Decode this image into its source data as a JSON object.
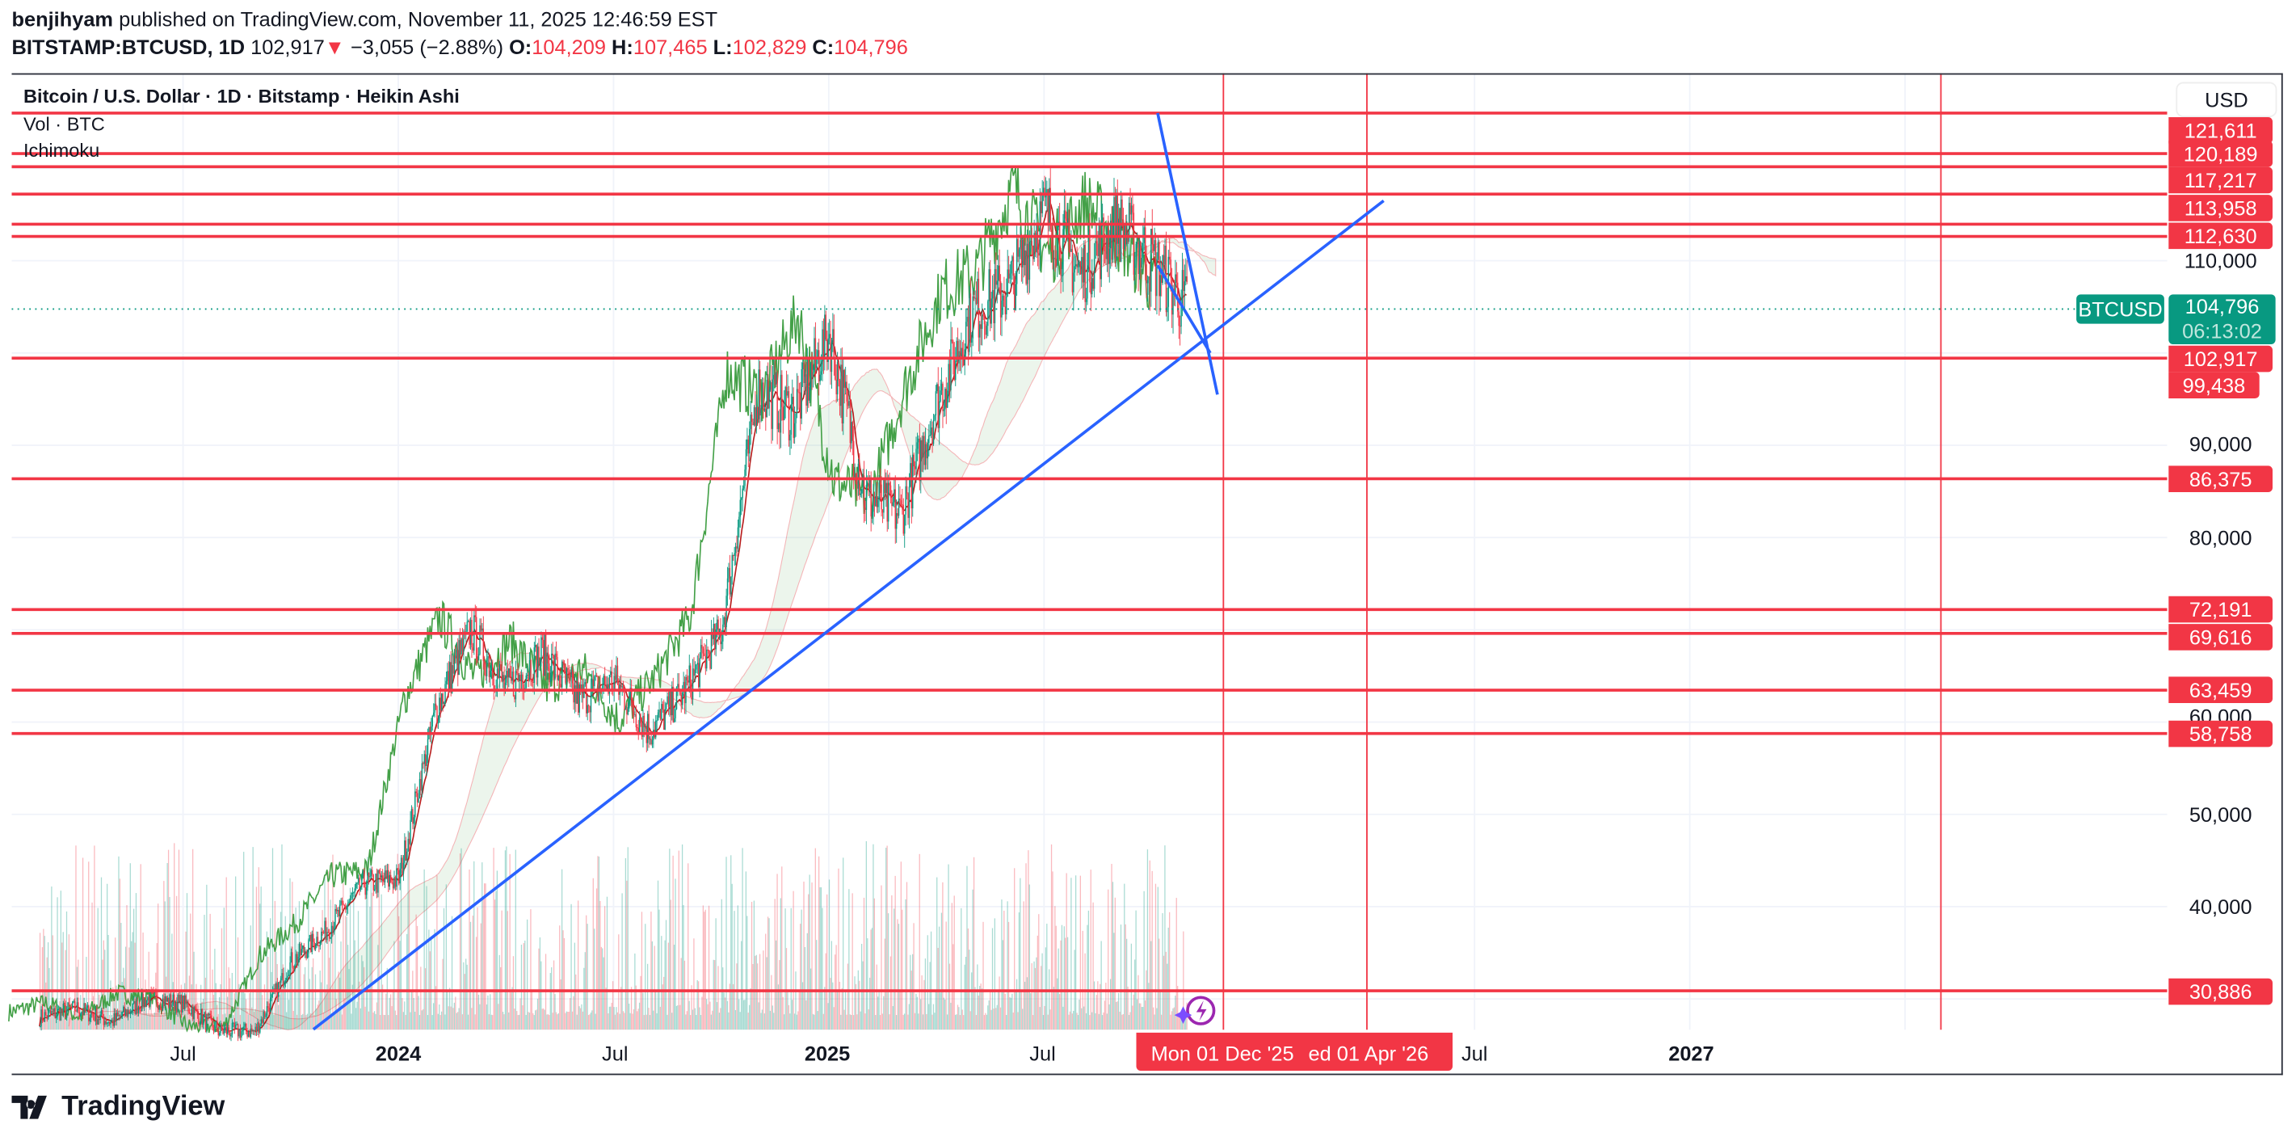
{
  "header": {
    "author": "benjihyam",
    "published": "published on TradingView.com, November 11, 2025 12:46:59 EST",
    "symbol": "BITSTAMP:BTCUSD, 1D",
    "last": "102,917",
    "change": "−3,055 (−2.88%)",
    "o_label": "O:",
    "o": "104,209",
    "h_label": "H:",
    "h": "107,465",
    "l_label": "L:",
    "l": "102,829",
    "c_label": "C:",
    "c": "104,796"
  },
  "legend": {
    "title": "Bitcoin / U.S. Dollar · 1D · Bitstamp · Heikin Ashi",
    "vol": "Vol · BTC",
    "ichimoku": "Ichimoku"
  },
  "price_axis": {
    "currency": "USD",
    "ticks": [
      "110,000",
      "90,000",
      "80,000",
      "60,000",
      "50,000",
      "40,000"
    ],
    "level_labels": [
      "121,611",
      "120,189",
      "117,217",
      "113,958",
      "112,630",
      "102,917",
      "99,438",
      "86,375",
      "72,191",
      "69,616",
      "63,459",
      "58,758",
      "30,886"
    ],
    "current_price": "104,796",
    "countdown": "06:13:02",
    "symbol_tag": "BTCUSD"
  },
  "time_axis": {
    "ticks": [
      {
        "label": "Jul",
        "bold": false
      },
      {
        "label": "2024",
        "bold": true
      },
      {
        "label": "Jul",
        "bold": false
      },
      {
        "label": "2025",
        "bold": true
      },
      {
        "label": "Jul",
        "bold": false
      },
      {
        "label": "Jul",
        "bold": false
      },
      {
        "label": "2027",
        "bold": true
      }
    ],
    "highlight_1": "Mon 01 Dec '25",
    "highlight_2": "ed 01 Apr '26"
  },
  "footer": {
    "brand": "TradingView"
  },
  "colors": {
    "up": "#089981",
    "down": "#f23645",
    "level": "#f23645",
    "trendline": "#2962ff",
    "ichimoku_lag": "#43a047",
    "ichimoku_conv": "#b71c1c"
  },
  "chart_data": {
    "type": "candlestick",
    "style": "Heikin Ashi",
    "scale": "linear",
    "ylim": [
      26000,
      128000
    ],
    "xlim": [
      "2023-02",
      "2027-11"
    ],
    "grid": true,
    "monthly_close": [
      [
        "2023-03",
        28000
      ],
      [
        "2023-04",
        29000
      ],
      [
        "2023-05",
        27500
      ],
      [
        "2023-06",
        30000
      ],
      [
        "2023-07",
        29500
      ],
      [
        "2023-08",
        26500
      ],
      [
        "2023-09",
        26500
      ],
      [
        "2023-10",
        34000
      ],
      [
        "2023-11",
        37500
      ],
      [
        "2023-12",
        42500
      ],
      [
        "2024-01",
        43000
      ],
      [
        "2024-02",
        61000
      ],
      [
        "2024-03",
        70000
      ],
      [
        "2024-04",
        63500
      ],
      [
        "2024-05",
        67500
      ],
      [
        "2024-06",
        62500
      ],
      [
        "2024-07",
        64500
      ],
      [
        "2024-08",
        59000
      ],
      [
        "2024-09",
        63500
      ],
      [
        "2024-10",
        70000
      ],
      [
        "2024-11",
        96000
      ],
      [
        "2024-12",
        93500
      ],
      [
        "2025-01",
        102000
      ],
      [
        "2025-02",
        84500
      ],
      [
        "2025-03",
        82500
      ],
      [
        "2025-04",
        94500
      ],
      [
        "2025-05",
        104500
      ],
      [
        "2025-06",
        107000
      ],
      [
        "2025-07",
        115500
      ],
      [
        "2025-08",
        108500
      ],
      [
        "2025-09",
        114000
      ],
      [
        "2025-10",
        110000
      ],
      [
        "2025-11",
        104796
      ]
    ],
    "horizontal_levels": [
      126000,
      121611,
      120189,
      117217,
      113958,
      112630,
      99438,
      86375,
      72191,
      69616,
      63459,
      58758,
      30886
    ],
    "vertical_lines": [
      "2025-12-01",
      "2026-04-01",
      "2027-08-01"
    ],
    "trendlines": [
      {
        "from": [
          "2023-10-20",
          26700
        ],
        "to": [
          "2026-04-15",
          116500
        ]
      },
      {
        "from": [
          "2025-10-06",
          126000
        ],
        "to": [
          "2025-11-26",
          95500
        ]
      },
      {
        "from": [
          "2025-10-06",
          109500
        ],
        "to": [
          "2025-11-20",
          100000
        ]
      }
    ]
  }
}
